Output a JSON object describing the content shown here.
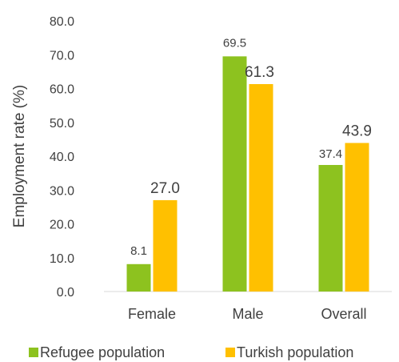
{
  "chart_data": {
    "type": "bar",
    "categories": [
      "Female",
      "Male",
      "Overall"
    ],
    "series": [
      {
        "name": "Refugee population",
        "values": [
          8.1,
          69.5,
          37.4
        ],
        "color": "#8DC21F"
      },
      {
        "name": "Turkish population",
        "values": [
          27.0,
          61.3,
          43.9
        ],
        "color": "#FFC000"
      }
    ],
    "data_labels": [
      [
        "8.1",
        "69.5",
        "37.4"
      ],
      [
        "27.0",
        "61.3",
        "43.9"
      ]
    ],
    "y_ticks": [
      "0.0",
      "10.0",
      "20.0",
      "30.0",
      "40.0",
      "50.0",
      "60.0",
      "70.0",
      "80.0"
    ],
    "title": "",
    "xlabel": "",
    "ylabel": "Employment rate (%)",
    "ylim": [
      0,
      80
    ],
    "grid": false,
    "legend": "bottom"
  }
}
